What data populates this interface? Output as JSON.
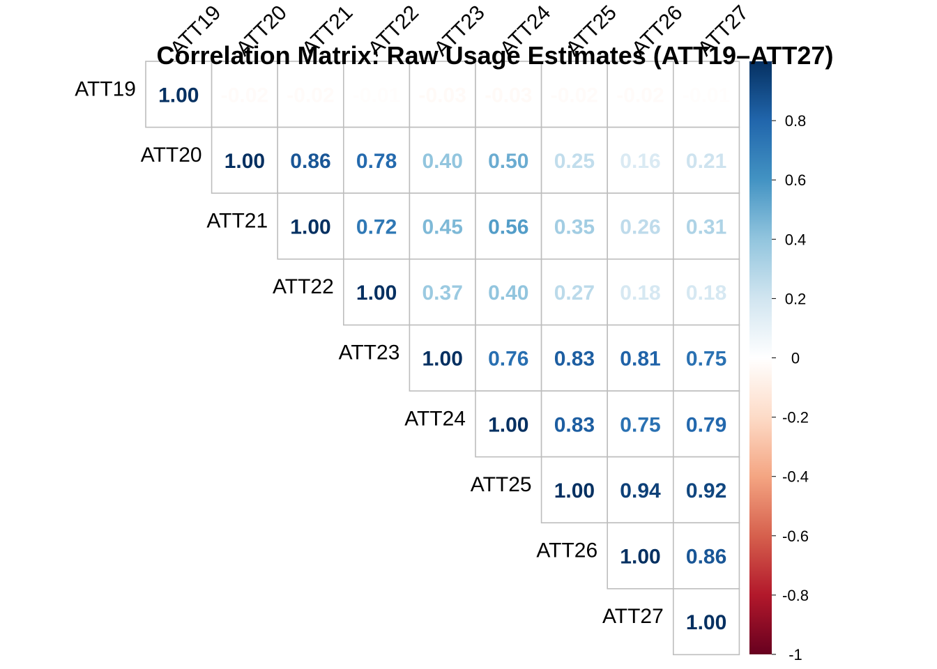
{
  "chart_data": {
    "type": "heatmap",
    "title": "Correlation Matrix: Raw Usage Estimates (ATT19–ATT27)",
    "layout": "upper-triangle",
    "variables": [
      "ATT19",
      "ATT20",
      "ATT21",
      "ATT22",
      "ATT23",
      "ATT24",
      "ATT25",
      "ATT26",
      "ATT27"
    ],
    "matrix": [
      [
        1.0,
        -0.02,
        -0.02,
        -0.01,
        -0.03,
        -0.03,
        -0.02,
        -0.02,
        -0.01
      ],
      [
        null,
        1.0,
        0.86,
        0.78,
        0.4,
        0.5,
        0.25,
        0.16,
        0.21
      ],
      [
        null,
        null,
        1.0,
        0.72,
        0.45,
        0.56,
        0.35,
        0.26,
        0.31
      ],
      [
        null,
        null,
        null,
        1.0,
        0.37,
        0.4,
        0.27,
        0.18,
        0.18
      ],
      [
        null,
        null,
        null,
        null,
        1.0,
        0.76,
        0.83,
        0.81,
        0.75
      ],
      [
        null,
        null,
        null,
        null,
        null,
        1.0,
        0.83,
        0.75,
        0.79
      ],
      [
        null,
        null,
        null,
        null,
        null,
        null,
        1.0,
        0.94,
        0.92
      ],
      [
        null,
        null,
        null,
        null,
        null,
        null,
        null,
        1.0,
        0.86
      ],
      [
        null,
        null,
        null,
        null,
        null,
        null,
        null,
        null,
        1.0
      ]
    ],
    "number_format": "2 decimals",
    "colorbar": {
      "range": [
        -1,
        1
      ],
      "ticks": [
        -1,
        -0.8,
        -0.6,
        -0.4,
        -0.2,
        0,
        0.2,
        0.4,
        0.6,
        0.8
      ],
      "tick_labels": [
        "-1",
        "-0.8",
        "-0.6",
        "-0.4",
        "-0.2",
        "0",
        "0.2",
        "0.4",
        "0.6",
        "0.8"
      ],
      "colors": [
        "#67001F",
        "#B2182B",
        "#D6604D",
        "#F4A582",
        "#FDDBC7",
        "#FFFFFF",
        "#D1E5F0",
        "#92C5DE",
        "#4393C3",
        "#2166AC",
        "#053061"
      ]
    },
    "grid": true,
    "legend_position": "right"
  }
}
